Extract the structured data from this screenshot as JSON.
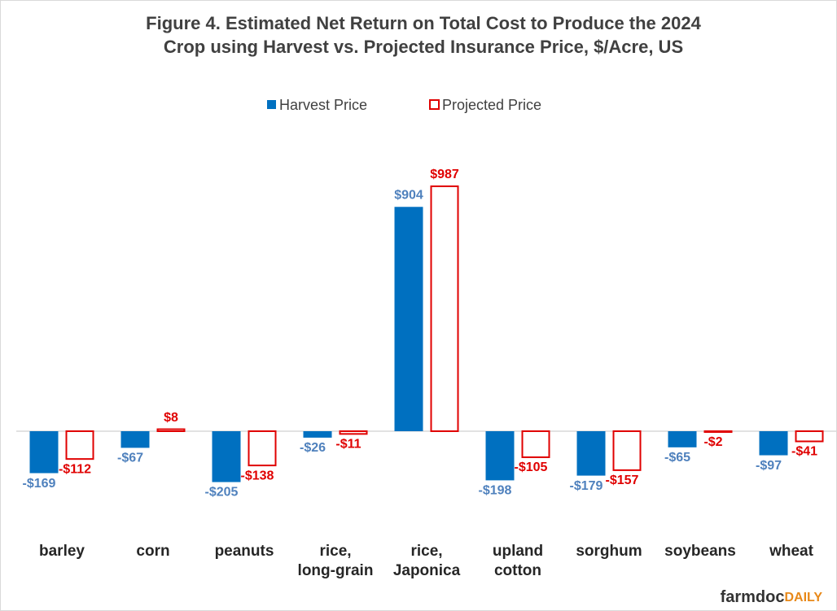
{
  "chart_data": {
    "type": "bar",
    "title": "Figure  4. Estimated Net Return on Total Cost to Produce the 2024\nCrop using Harvest vs. Projected Insurance Price, $/Acre, US",
    "categories": [
      "barley",
      "corn",
      "peanuts",
      "rice,\nlong-grain",
      "rice,\nJaponica",
      "upland\ncotton",
      "sorghum",
      "soybeans",
      "wheat"
    ],
    "series": [
      {
        "name": "Harvest Price",
        "color": "#0070c0",
        "label_color": "#4f81bd",
        "values": [
          -169,
          -67,
          -205,
          -26,
          904,
          -198,
          -179,
          -65,
          -97
        ],
        "value_labels": [
          "-$169",
          "-$67",
          "-$205",
          "-$26",
          "$904",
          "-$198",
          "-$179",
          "-$65",
          "-$97"
        ]
      },
      {
        "name": "Projected Price",
        "color": "#e00000",
        "fill": "#ffffff",
        "label_color": "#e00000",
        "values": [
          -112,
          8,
          -138,
          -11,
          987,
          -105,
          -157,
          -2,
          -41
        ],
        "value_labels": [
          "-$112",
          "$8",
          "-$138",
          "-$11",
          "$987",
          "-$105",
          "-$157",
          "-$2",
          "-$41"
        ]
      }
    ],
    "ylim": [
      -400,
      1200
    ],
    "legend": "top"
  },
  "footer": {
    "logo_main": "farmdoc",
    "logo_accent": "DAILY"
  }
}
